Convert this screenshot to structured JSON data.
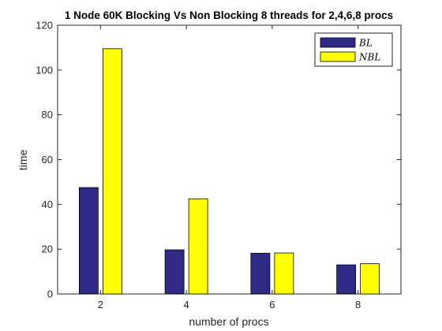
{
  "chart_data": {
    "type": "bar",
    "title": "1 Node 60K Blocking Vs Non Blocking 8 threads for 2,4,6,8 procs",
    "xlabel": "number of procs",
    "ylabel": "time",
    "categories": [
      "2",
      "4",
      "6",
      "8"
    ],
    "ylim": [
      0,
      120
    ],
    "yticks": [
      0,
      20,
      40,
      60,
      80,
      100,
      120
    ],
    "series": [
      {
        "name": "BL",
        "color": "#2e2a86",
        "values": [
          47.5,
          19.7,
          18.2,
          13.0
        ]
      },
      {
        "name": "NBL",
        "color": "#ffff00",
        "values": [
          109.5,
          42.5,
          18.3,
          13.5
        ]
      }
    ],
    "legend_position": "top-right",
    "grid": false
  }
}
